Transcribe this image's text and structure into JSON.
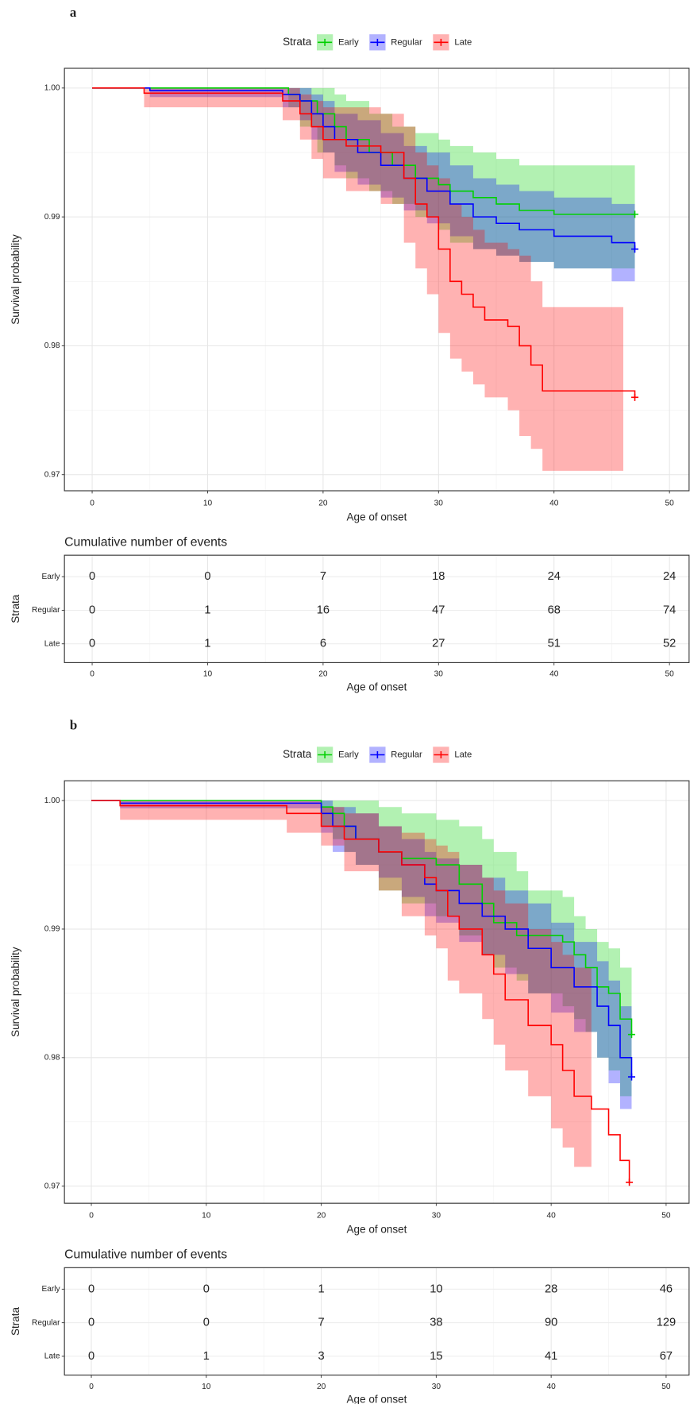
{
  "chart_data": [
    {
      "type": "survival",
      "panel": "a",
      "legend_title": "Strata",
      "xlabel": "Age of onset",
      "ylabel": "Survival probability",
      "xlim": [
        -2.4,
        51.7
      ],
      "ylim": [
        0.96875,
        1.00153
      ],
      "xticks": [
        0,
        10,
        20,
        30,
        40,
        50
      ],
      "yticks": [
        0.97,
        0.98,
        0.99,
        {
          "value": 1,
          "label": "1.00"
        }
      ],
      "grid": true,
      "series": [
        {
          "name": "Early",
          "color": "#00d000",
          "x": [
            0,
            17,
            18,
            19.5,
            21,
            22,
            24,
            26,
            28,
            30,
            31,
            33,
            35,
            37,
            40,
            47
          ],
          "values": [
            1,
            0.9995,
            0.999,
            0.998,
            0.997,
            0.996,
            0.995,
            0.994,
            0.993,
            0.9925,
            0.992,
            0.9915,
            0.991,
            0.9905,
            0.9902,
            0.9902
          ],
          "lower": [
            1,
            0.9985,
            0.997,
            0.995,
            0.994,
            0.993,
            0.992,
            0.991,
            0.99,
            0.989,
            0.988,
            0.9875,
            0.987,
            0.9865,
            0.986,
            0.986
          ],
          "upper": [
            1,
            1,
            1,
            1,
            0.9995,
            0.999,
            0.998,
            0.997,
            0.9965,
            0.996,
            0.9955,
            0.995,
            0.9945,
            0.994,
            0.994,
            0.994
          ]
        },
        {
          "name": "Regular",
          "color": "#0000ff",
          "x": [
            0,
            5,
            16.5,
            18,
            19,
            20,
            21,
            23,
            25,
            27,
            29,
            31,
            33,
            35,
            37,
            40,
            45,
            47
          ],
          "values": [
            1,
            0.9998,
            0.9995,
            0.999,
            0.998,
            0.997,
            0.996,
            0.995,
            0.994,
            0.993,
            0.992,
            0.991,
            0.99,
            0.9895,
            0.989,
            0.9885,
            0.988,
            0.9875
          ],
          "lower": [
            1,
            0.9993,
            0.9985,
            0.9975,
            0.996,
            0.995,
            0.9935,
            0.9925,
            0.9915,
            0.9905,
            0.9895,
            0.9885,
            0.9875,
            0.987,
            0.9865,
            0.986,
            0.985,
            0.985
          ],
          "upper": [
            1,
            1,
            1,
            1,
            0.9995,
            0.999,
            0.998,
            0.9975,
            0.9965,
            0.9955,
            0.995,
            0.994,
            0.993,
            0.9925,
            0.992,
            0.9915,
            0.991,
            0.991
          ]
        },
        {
          "name": "Late",
          "color": "#ff0000",
          "x": [
            0,
            4.5,
            16.5,
            18,
            19,
            20,
            22,
            25,
            27,
            28,
            29,
            30,
            31,
            32,
            33,
            34,
            36,
            37,
            38,
            39,
            46,
            47
          ],
          "values": [
            1,
            0.9996,
            0.999,
            0.998,
            0.997,
            0.996,
            0.9955,
            0.995,
            0.993,
            0.991,
            0.99,
            0.9875,
            0.985,
            0.984,
            0.983,
            0.982,
            0.9815,
            0.98,
            0.9785,
            0.9765,
            0.9765,
            0.976
          ],
          "lower": [
            null,
            0.9985,
            0.9975,
            0.996,
            0.9945,
            0.993,
            0.992,
            0.991,
            0.988,
            0.986,
            0.984,
            0.981,
            0.979,
            0.978,
            0.977,
            0.976,
            0.975,
            0.973,
            0.972,
            0.9703,
            0.9703,
            null
          ],
          "upper": [
            null,
            1,
            1,
            0.9995,
            0.999,
            0.9985,
            0.9985,
            0.998,
            0.997,
            0.995,
            0.994,
            0.993,
            0.991,
            0.99,
            0.989,
            0.988,
            0.9875,
            0.987,
            0.985,
            0.983,
            0.983,
            null
          ]
        }
      ]
    },
    {
      "type": "table",
      "title": "Cumulative number of events",
      "ylabel": "Strata",
      "xlabel": "Age of onset",
      "xlim": [
        -2.4,
        51.7
      ],
      "xticks": [
        0,
        10,
        20,
        30,
        40,
        50
      ],
      "grid": true,
      "series": [
        {
          "name": "Early",
          "color": "#00e000",
          "values": [
            0,
            0,
            7,
            18,
            24,
            24
          ]
        },
        {
          "name": "Regular",
          "color": "#0000ff",
          "values": [
            0,
            1,
            16,
            47,
            68,
            74
          ]
        },
        {
          "name": "Late",
          "color": "#ff0000",
          "values": [
            0,
            1,
            6,
            27,
            51,
            52
          ]
        }
      ]
    },
    {
      "type": "survival",
      "panel": "b",
      "legend_title": "Strata",
      "xlabel": "Age of onset",
      "ylabel": "Survival probability",
      "xlim": [
        -2.34,
        52.0
      ],
      "ylim": [
        0.96867,
        1.00154
      ],
      "xticks": [
        0,
        10,
        20,
        30,
        40,
        50
      ],
      "yticks": [
        0.97,
        0.98,
        0.99,
        {
          "value": 1,
          "label": "1.00"
        }
      ],
      "grid": true,
      "series": [
        {
          "name": "Early",
          "color": "#00d000",
          "x": [
            0,
            20,
            21,
            22,
            23,
            25,
            27,
            30,
            32,
            34,
            35,
            37,
            38,
            41,
            42,
            43,
            44,
            45,
            46,
            47
          ],
          "values": [
            1,
            0.9995,
            0.999,
            0.998,
            0.997,
            0.996,
            0.9955,
            0.995,
            0.9935,
            0.992,
            0.9905,
            0.9895,
            0.9895,
            0.989,
            0.988,
            0.987,
            0.9855,
            0.985,
            0.983,
            0.9818
          ],
          "lower": [
            1,
            0.998,
            0.997,
            0.996,
            0.995,
            0.993,
            0.992,
            0.991,
            0.9895,
            0.988,
            0.987,
            0.986,
            0.985,
            0.984,
            0.983,
            0.982,
            0.98,
            0.979,
            0.977,
            0.9765
          ],
          "upper": [
            1,
            1,
            1,
            1,
            1,
            0.9995,
            0.999,
            0.9985,
            0.998,
            0.997,
            0.996,
            0.9945,
            0.993,
            0.9925,
            0.991,
            0.99,
            0.989,
            0.9885,
            0.987,
            0.987
          ]
        },
        {
          "name": "Regular",
          "color": "#0000ff",
          "x": [
            0,
            2.5,
            20,
            21,
            23,
            25,
            27,
            29,
            30,
            32,
            34,
            36,
            38,
            40,
            42,
            44,
            45,
            46,
            47
          ],
          "values": [
            1,
            0.9998,
            0.999,
            0.998,
            0.997,
            0.996,
            0.995,
            0.9935,
            0.993,
            0.992,
            0.991,
            0.99,
            0.9885,
            0.987,
            0.9855,
            0.984,
            0.9825,
            0.98,
            0.9785
          ],
          "lower": [
            1,
            0.9994,
            0.9975,
            0.996,
            0.995,
            0.994,
            0.9925,
            0.991,
            0.9905,
            0.989,
            0.988,
            0.9865,
            0.985,
            0.9835,
            0.982,
            0.98,
            0.978,
            0.976,
            0.9755
          ],
          "upper": [
            1,
            1,
            1,
            0.9995,
            0.999,
            0.998,
            0.997,
            0.996,
            0.9955,
            0.995,
            0.994,
            0.993,
            0.992,
            0.9905,
            0.989,
            0.9875,
            0.986,
            0.984,
            0.983
          ]
        },
        {
          "name": "Late",
          "color": "#ff0000",
          "x": [
            0,
            2.5,
            17,
            20,
            22,
            25,
            27,
            29,
            30,
            31,
            32,
            34,
            35,
            36,
            38,
            40,
            41,
            42,
            43.5,
            45,
            46,
            46.8
          ],
          "values": [
            1,
            0.9996,
            0.999,
            0.998,
            0.997,
            0.996,
            0.995,
            0.994,
            0.993,
            0.991,
            0.99,
            0.988,
            0.9865,
            0.9845,
            0.9825,
            0.981,
            0.979,
            0.977,
            0.976,
            0.974,
            0.972,
            0.9703
          ],
          "lower": [
            null,
            0.9985,
            0.9975,
            0.9965,
            0.9945,
            0.993,
            0.991,
            0.9895,
            0.9885,
            0.986,
            0.985,
            0.983,
            0.981,
            0.979,
            0.977,
            0.9745,
            0.973,
            0.9715,
            0.9705,
            null,
            null,
            null
          ],
          "upper": [
            null,
            1,
            1,
            0.9995,
            0.999,
            0.998,
            0.9975,
            0.997,
            0.9965,
            0.996,
            0.995,
            0.994,
            0.993,
            0.992,
            0.99,
            0.989,
            0.988,
            0.987,
            0.987,
            null,
            null,
            null
          ]
        }
      ]
    },
    {
      "type": "table",
      "title": "Cumulative number of events",
      "ylabel": "Strata",
      "xlabel": "Age of onset",
      "xlim": [
        -2.34,
        52.0
      ],
      "xticks": [
        0,
        10,
        20,
        30,
        40,
        50
      ],
      "grid": true,
      "series": [
        {
          "name": "Early",
          "color": "#00e000",
          "values": [
            0,
            0,
            1,
            10,
            28,
            46
          ]
        },
        {
          "name": "Regular",
          "color": "#0000ff",
          "values": [
            0,
            0,
            7,
            38,
            90,
            129
          ]
        },
        {
          "name": "Late",
          "color": "#ff0000",
          "values": [
            0,
            1,
            3,
            15,
            41,
            67
          ]
        }
      ]
    }
  ]
}
